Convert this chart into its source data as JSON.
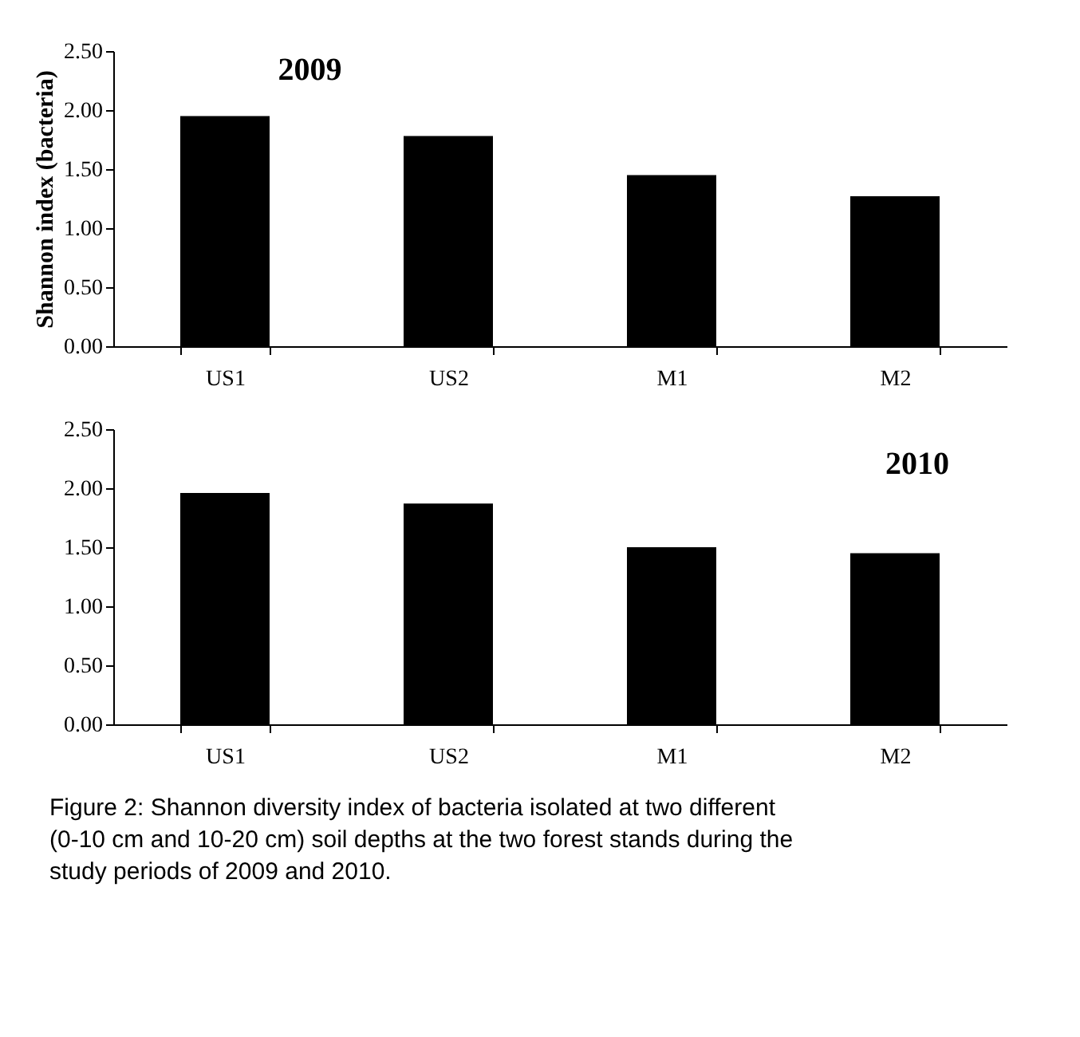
{
  "chart_data": [
    {
      "type": "bar",
      "title": "2009",
      "ylabel": "Shannon index (bacteria)",
      "categories": [
        "US1",
        "US2",
        "M1",
        "M2"
      ],
      "values": [
        1.95,
        1.78,
        1.45,
        1.27
      ],
      "color": "#000000",
      "ylim": [
        0,
        2.5
      ],
      "grid": false,
      "yticks": [
        {
          "value": 0,
          "label": "0.00"
        },
        {
          "value": 0.5,
          "label": "0.50"
        },
        {
          "value": 1,
          "label": "1.00"
        },
        {
          "value": 1.5,
          "label": "1.50"
        },
        {
          "value": 2,
          "label": "2.00"
        },
        {
          "value": 2.5,
          "label": "2.50"
        }
      ]
    },
    {
      "type": "bar",
      "title": "2010",
      "categories": [
        "US1",
        "US2",
        "M1",
        "M2"
      ],
      "values": [
        1.96,
        1.87,
        1.5,
        1.45
      ],
      "color": "#000000",
      "ylim": [
        0,
        2.5
      ],
      "yticks": [
        {
          "value": 0,
          "label": "0.00"
        },
        {
          "value": 0.5,
          "label": "0.50"
        },
        {
          "value": 1,
          "label": "1.00"
        },
        {
          "value": 1.5,
          "label": "1.50"
        },
        {
          "value": 2,
          "label": "2.00"
        },
        {
          "value": 2.5,
          "label": "2.50"
        }
      ],
      "grid": false,
      "annotations": [
        "Figure 2: Shannon diversity index of bacteria isolated at two different (0-10 cm and 10-20 cm) soil depths at the two forest stands during the study periods of 2009 and 2010."
      ]
    }
  ]
}
